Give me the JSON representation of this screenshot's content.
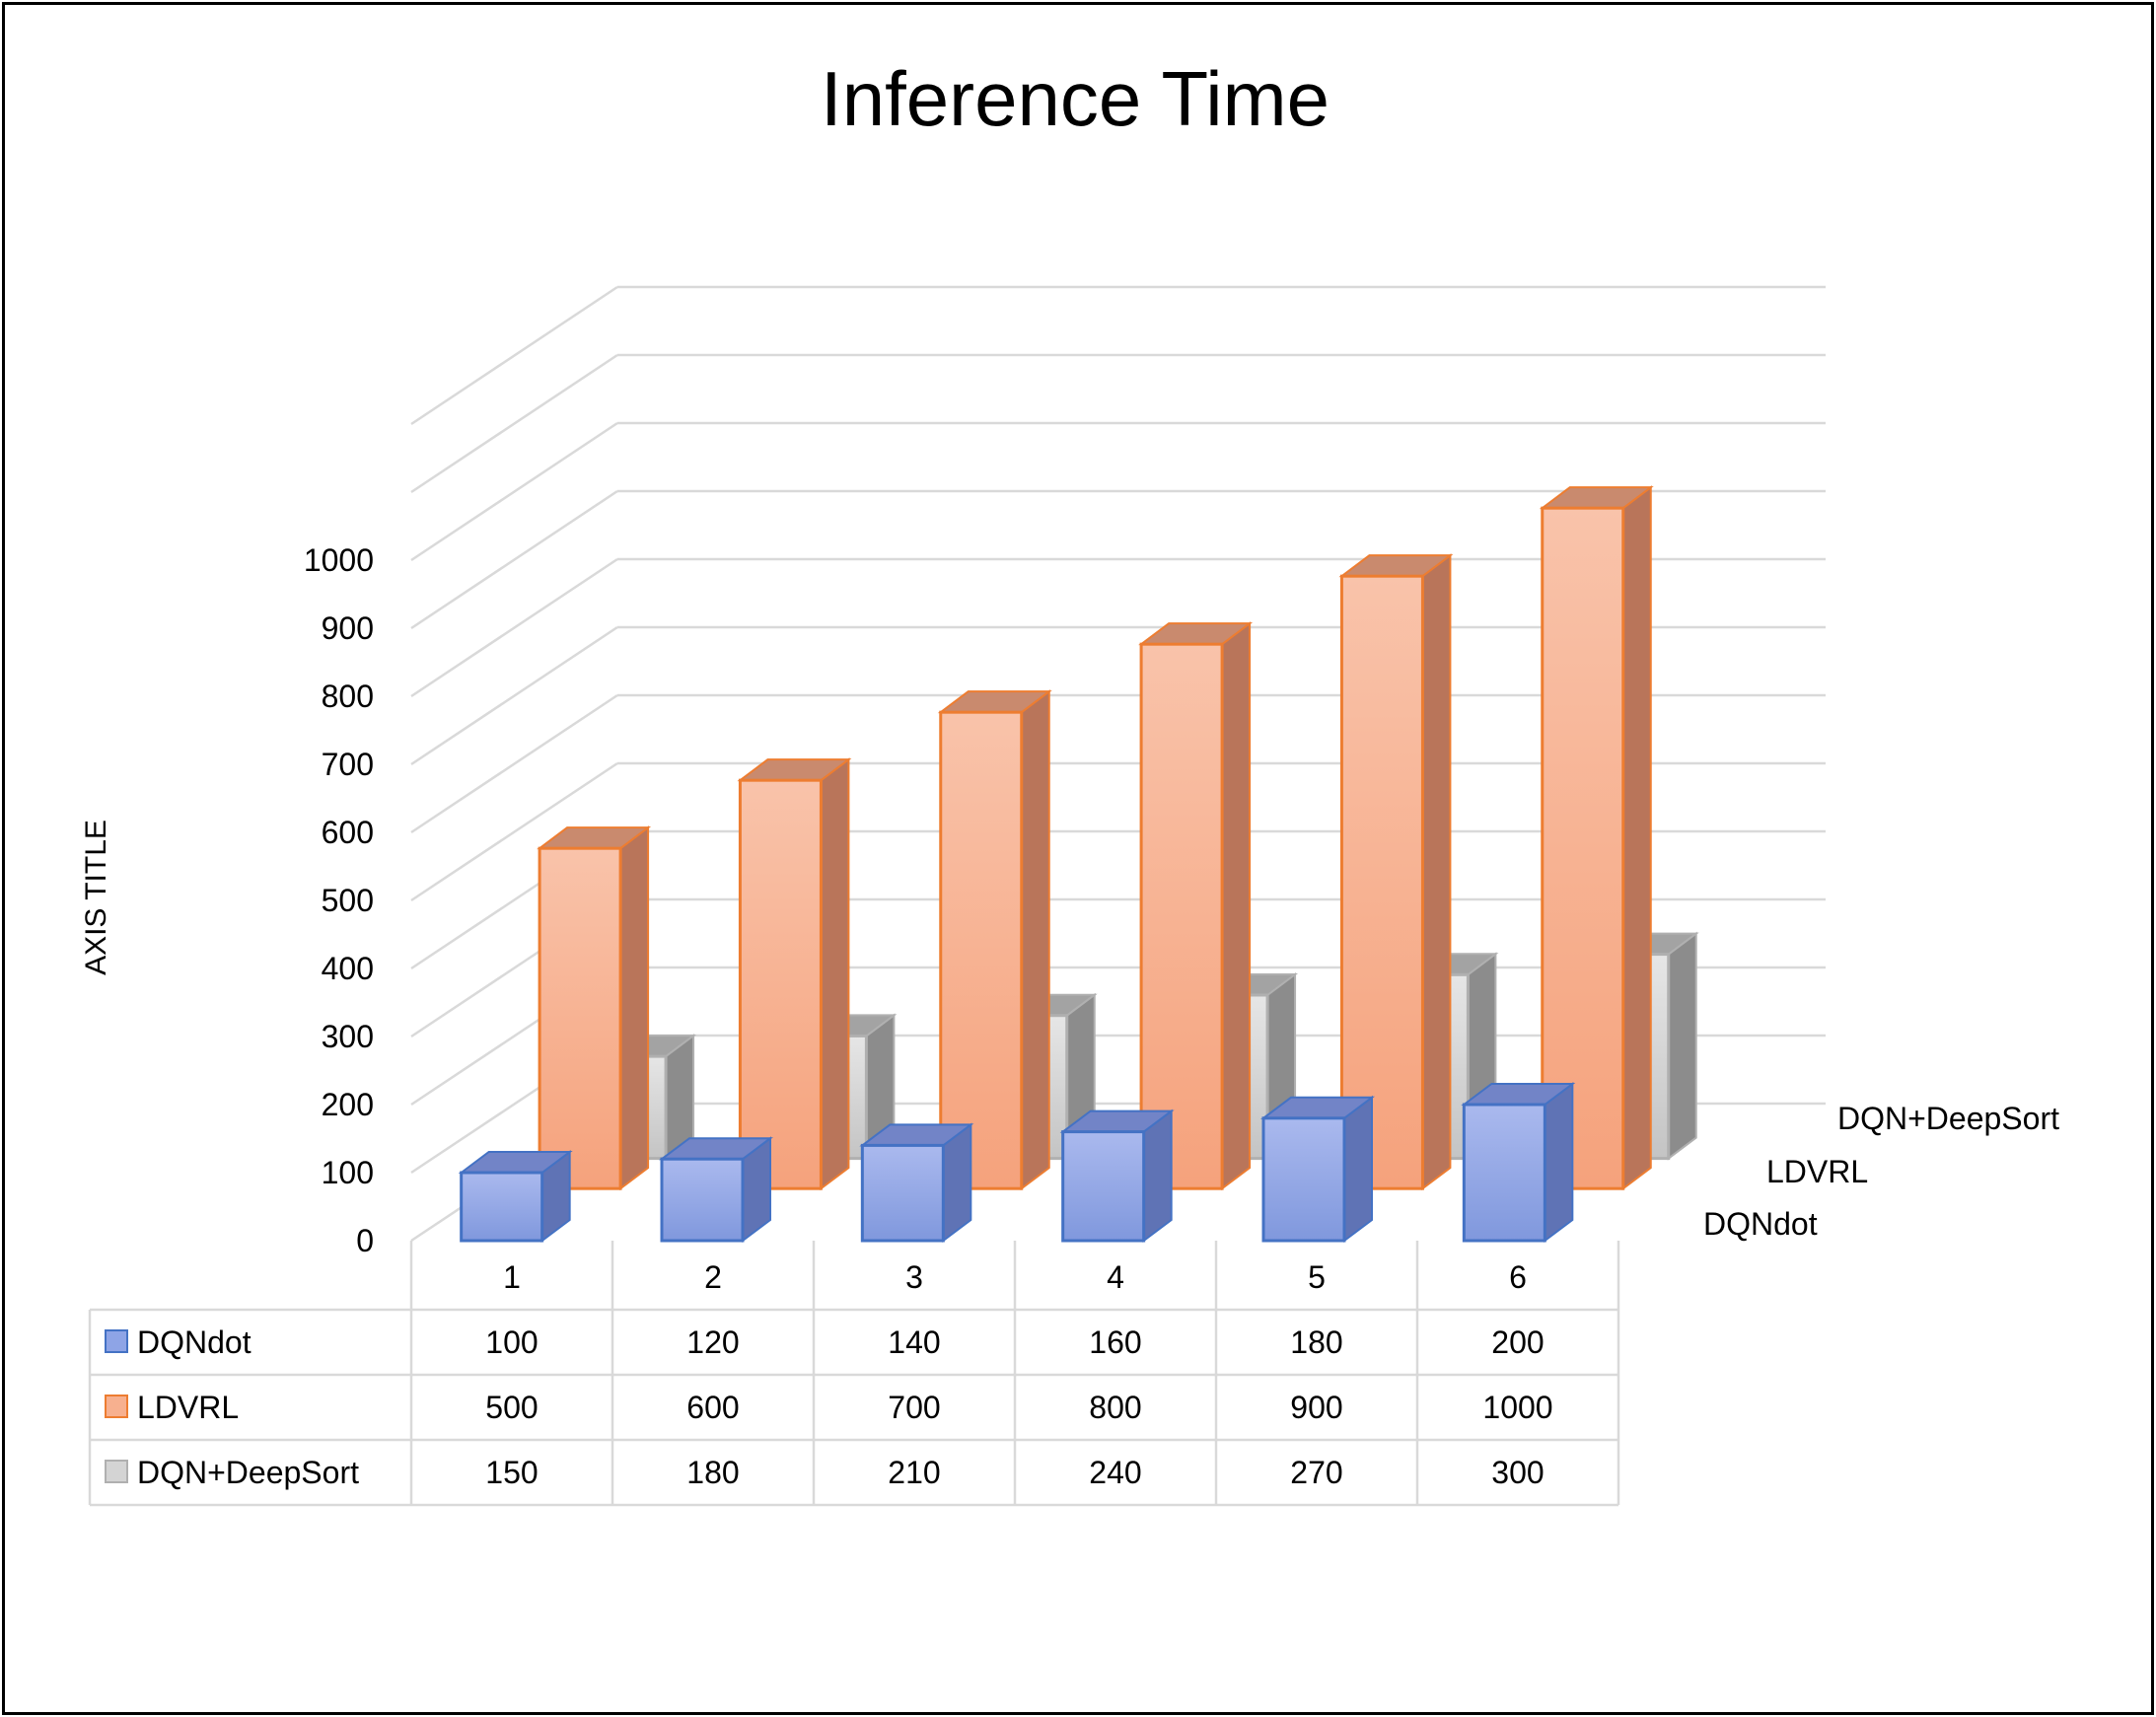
{
  "chart_data": {
    "type": "bar",
    "subtype": "3d-column",
    "title": "Inference Time",
    "ylabel": "AXIS TITLE",
    "xlabel": "",
    "ylim": [
      0,
      1000
    ],
    "yticks": [
      0,
      100,
      200,
      300,
      400,
      500,
      600,
      700,
      800,
      900,
      1000
    ],
    "grid": true,
    "categories": [
      "1",
      "2",
      "3",
      "4",
      "5",
      "6"
    ],
    "series": [
      {
        "name": "DQNdot",
        "values": [
          100,
          120,
          140,
          160,
          180,
          200
        ],
        "color": "#8ea4e6",
        "edge": "#4472c4"
      },
      {
        "name": "LDVRL",
        "values": [
          500,
          600,
          700,
          800,
          900,
          1000
        ],
        "color": "#f7b08f",
        "edge": "#ed7d31"
      },
      {
        "name": "DQN+DeepSort",
        "values": [
          150,
          180,
          210,
          240,
          270,
          300
        ],
        "color": "#d4d4d4",
        "edge": "#b0b0b0"
      }
    ],
    "data_table": true
  }
}
